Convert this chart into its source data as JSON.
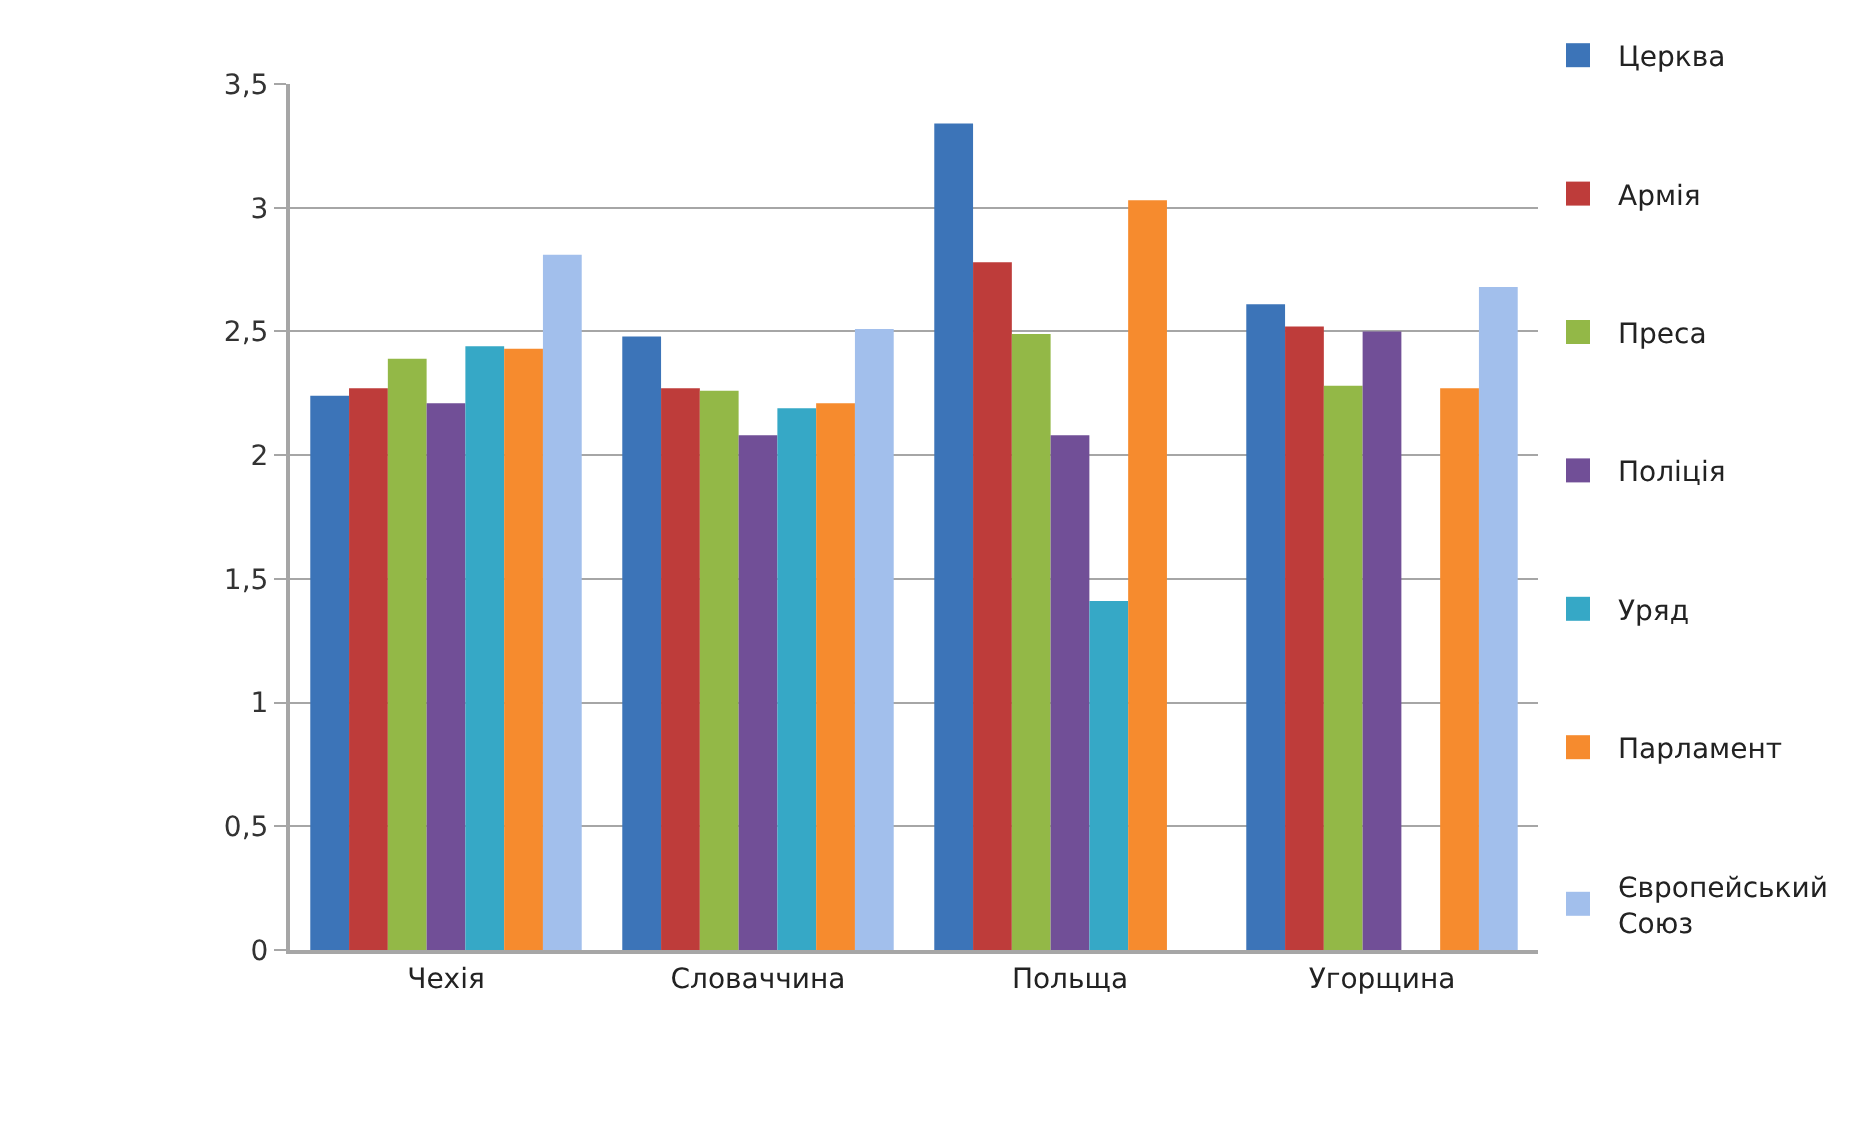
{
  "chart_data": {
    "type": "bar",
    "categories": [
      "Чехія",
      "Словаччина",
      "Польща",
      "Угорщина"
    ],
    "series": [
      {
        "name": "Церква",
        "color": "#3c74b8",
        "values": [
          2.24,
          2.48,
          3.34,
          2.61
        ]
      },
      {
        "name": "Армія",
        "color": "#be3c3a",
        "values": [
          2.27,
          2.27,
          2.78,
          2.52
        ]
      },
      {
        "name": "Преса",
        "color": "#93b847",
        "values": [
          2.39,
          2.26,
          2.49,
          2.28
        ]
      },
      {
        "name": "Поліція",
        "color": "#714f97",
        "values": [
          2.21,
          2.08,
          2.08,
          2.5
        ]
      },
      {
        "name": "Уряд",
        "color": "#36a8c6",
        "values": [
          2.44,
          2.19,
          1.41,
          null
        ]
      },
      {
        "name": "Парламент",
        "color": "#f68b2e",
        "values": [
          2.43,
          2.21,
          3.03,
          2.27
        ]
      },
      {
        "name": "Європейський Союз",
        "color": "#a2bfec",
        "values": [
          2.81,
          2.51,
          null,
          2.68
        ]
      }
    ],
    "ylim": [
      0,
      3.5
    ],
    "yticks": [
      0,
      {
        "value": 0.5,
        "label": "0,5"
      },
      1,
      {
        "value": 1.5,
        "label": "1,5"
      },
      2,
      {
        "value": 2.5,
        "label": "2,5"
      },
      3,
      {
        "value": 3.5,
        "label": "3,5"
      }
    ],
    "grid": "y",
    "legend": "right"
  }
}
